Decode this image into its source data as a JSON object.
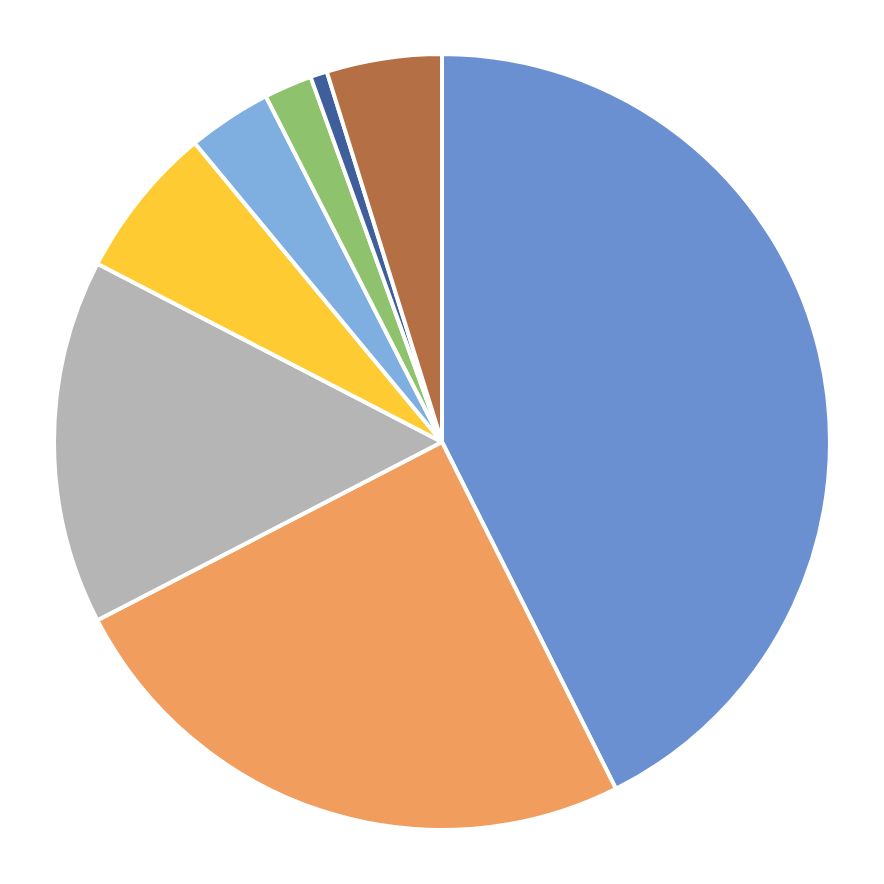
{
  "chart_data": {
    "type": "pie",
    "categories": [
      null,
      null,
      null,
      null,
      null,
      null,
      null,
      null
    ],
    "values": [
      42.6,
      24.8,
      15.2,
      6.4,
      3.5,
      2.0,
      0.7,
      4.8
    ],
    "colors": [
      "#6b90d2",
      "#f09d5e",
      "#b5b5b5",
      "#fecb32",
      "#7eafe0",
      "#8ec26c",
      "#3f5e9c",
      "#b56f44"
    ]
  }
}
